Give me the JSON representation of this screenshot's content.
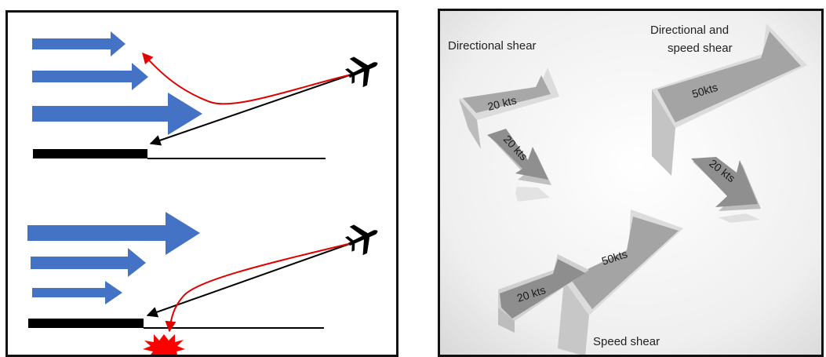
{
  "right_panel": {
    "labels": {
      "directional_shear": "Directional shear",
      "directional_and_speed_line1": "Directional and",
      "directional_and_speed_line2": "speed shear",
      "speed_shear": "Speed shear"
    },
    "arrows": {
      "dir_upper": "20 kts",
      "dir_lower": "20 kts",
      "dirspeed_upper": "50kts",
      "dirspeed_lower": "20 kts",
      "speed_upper": "50kts",
      "speed_lower": "20 kts"
    }
  },
  "colors": {
    "wind_arrow": "#4472c4",
    "flight_path_actual": "#e00000",
    "flight_path_intended": "#000000",
    "runway": "#000000",
    "crash_burst": "#ff0000"
  }
}
